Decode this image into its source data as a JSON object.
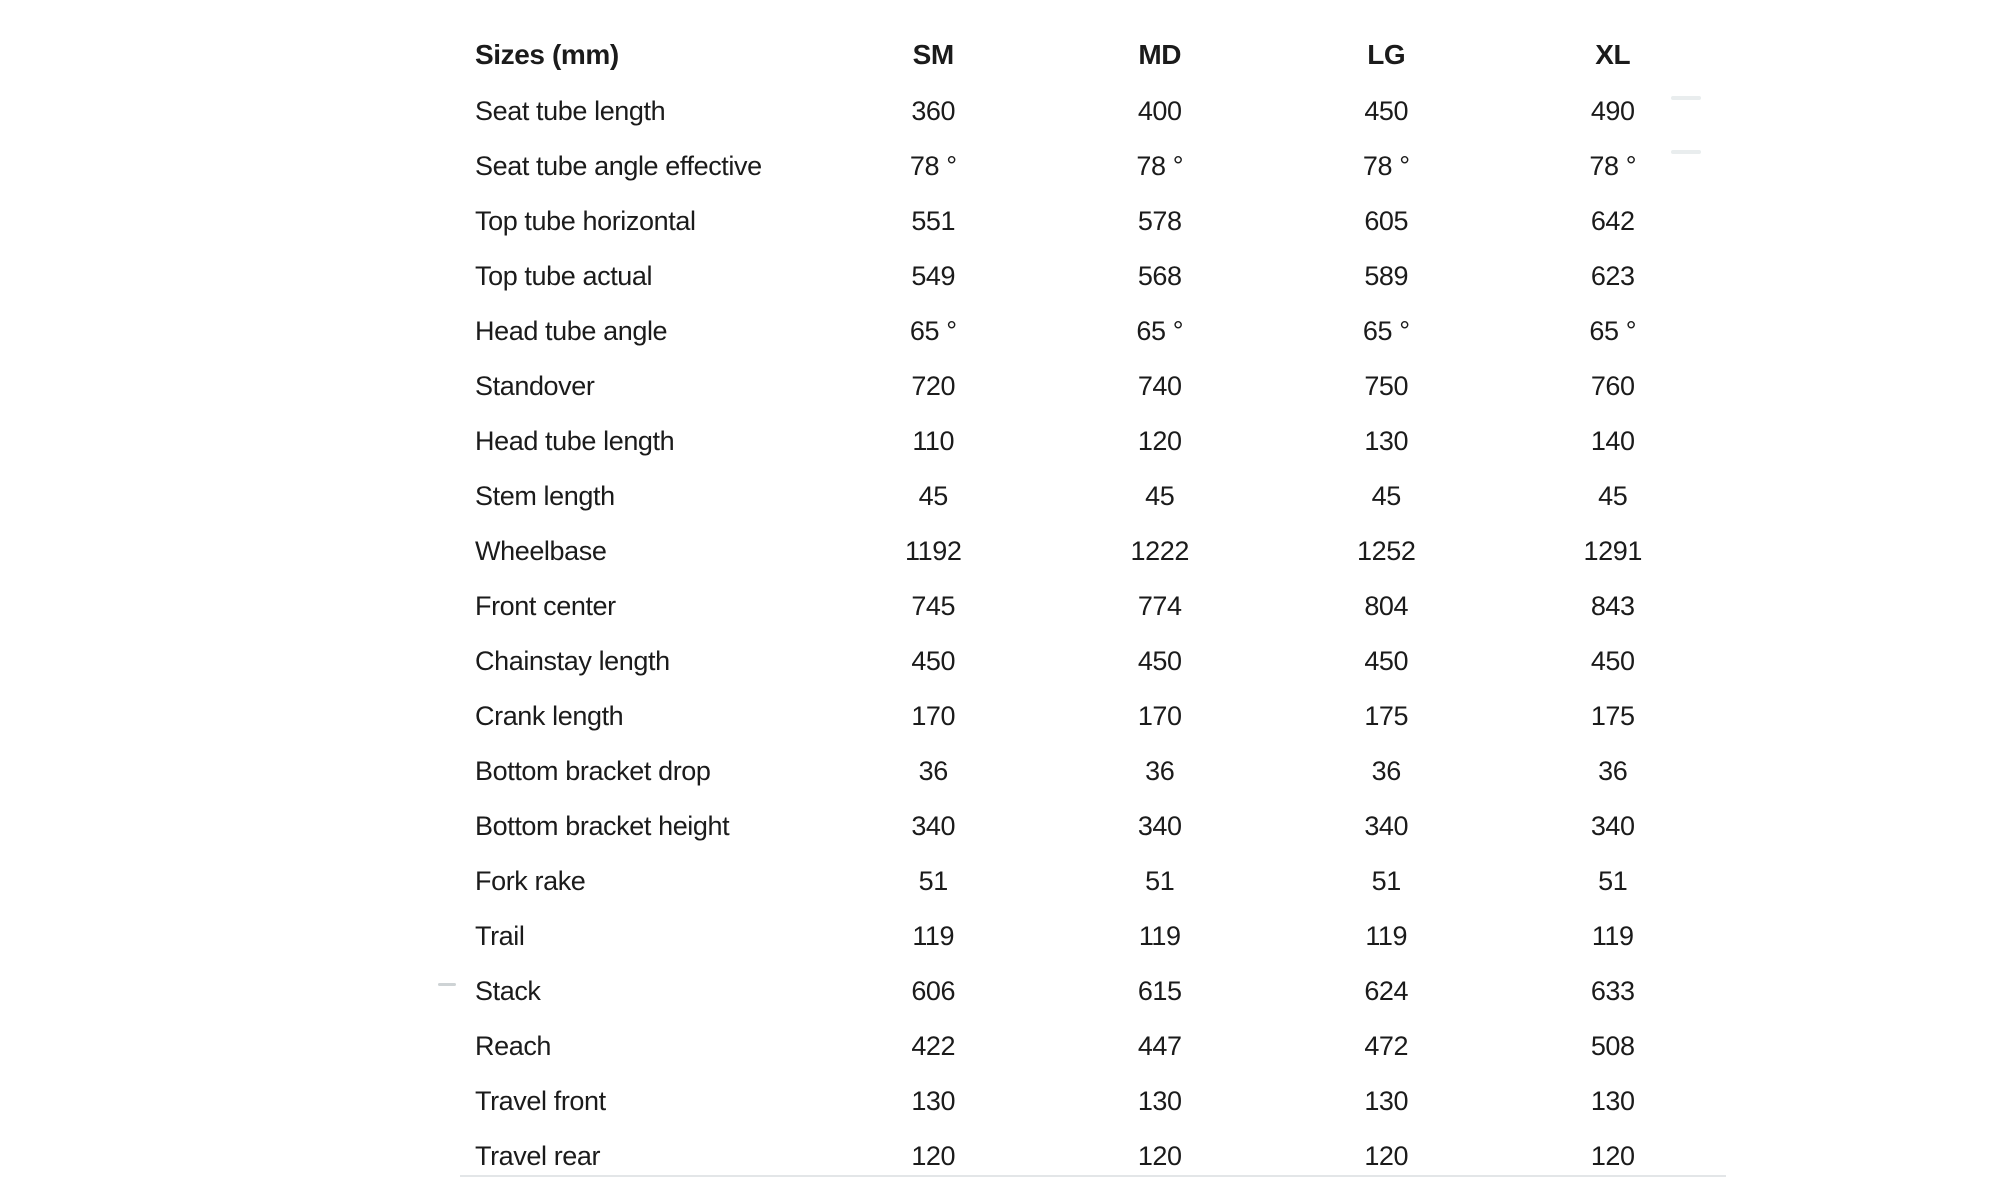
{
  "table": {
    "title": "Sizes (mm)",
    "columns": [
      "SM",
      "MD",
      "LG",
      "XL"
    ],
    "rows": [
      {
        "label": "Seat tube length",
        "values": [
          "360",
          "400",
          "450",
          "490"
        ]
      },
      {
        "label": "Seat tube angle effective",
        "values": [
          "78 °",
          "78 °",
          "78 °",
          "78 °"
        ]
      },
      {
        "label": "Top tube horizontal",
        "values": [
          "551",
          "578",
          "605",
          "642"
        ]
      },
      {
        "label": "Top tube actual",
        "values": [
          "549",
          "568",
          "589",
          "623"
        ]
      },
      {
        "label": "Head tube angle",
        "values": [
          "65 °",
          "65 °",
          "65 °",
          "65 °"
        ]
      },
      {
        "label": "Standover",
        "values": [
          "720",
          "740",
          "750",
          "760"
        ]
      },
      {
        "label": "Head tube length",
        "values": [
          "110",
          "120",
          "130",
          "140"
        ]
      },
      {
        "label": "Stem length",
        "values": [
          "45",
          "45",
          "45",
          "45"
        ]
      },
      {
        "label": "Wheelbase",
        "values": [
          "1192",
          "1222",
          "1252",
          "1291"
        ]
      },
      {
        "label": "Front center",
        "values": [
          "745",
          "774",
          "804",
          "843"
        ]
      },
      {
        "label": "Chainstay length",
        "values": [
          "450",
          "450",
          "450",
          "450"
        ]
      },
      {
        "label": "Crank length",
        "values": [
          "170",
          "170",
          "175",
          "175"
        ]
      },
      {
        "label": "Bottom bracket drop",
        "values": [
          "36",
          "36",
          "36",
          "36"
        ]
      },
      {
        "label": "Bottom bracket height",
        "values": [
          "340",
          "340",
          "340",
          "340"
        ]
      },
      {
        "label": "Fork rake",
        "values": [
          "51",
          "51",
          "51",
          "51"
        ]
      },
      {
        "label": "Trail",
        "values": [
          "119",
          "119",
          "119",
          "119"
        ]
      },
      {
        "label": "Stack",
        "values": [
          "606",
          "615",
          "624",
          "633"
        ]
      },
      {
        "label": "Reach",
        "values": [
          "422",
          "447",
          "472",
          "508"
        ]
      },
      {
        "label": "Travel front",
        "values": [
          "130",
          "130",
          "130",
          "130"
        ]
      },
      {
        "label": "Travel rear",
        "values": [
          "120",
          "120",
          "120",
          "120"
        ]
      }
    ]
  },
  "colors": {
    "text": "#1b1b1b",
    "bottom_rule": "#e3e6e8",
    "dash_light": "#e9edee",
    "dash_medium": "#ced3d5"
  }
}
